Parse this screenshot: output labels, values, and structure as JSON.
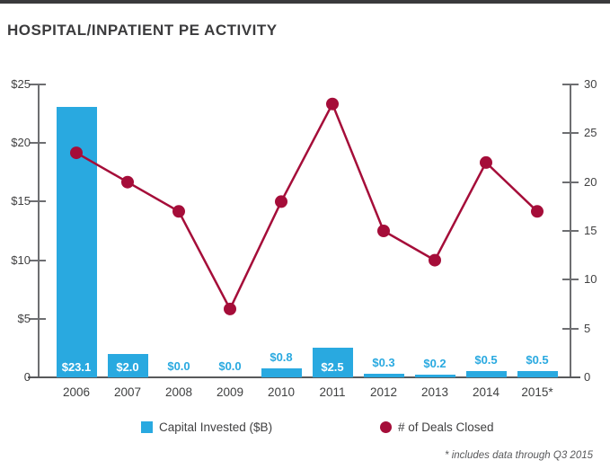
{
  "page": {
    "title": "HOSPITAL/INPATIENT PE ACTIVITY",
    "footnote": "* includes data through Q3 2015"
  },
  "colors": {
    "bar_blue": "#29a9e0",
    "line_crimson": "#a50d39",
    "axis_gray": "#6d6e71",
    "title_gray": "#3b3b3d",
    "label_gray": "#414142"
  },
  "legend": {
    "items": [
      {
        "swatch": "square-swatch",
        "color": "#29a9e0",
        "label": "Capital Invested ($B)"
      },
      {
        "swatch": "circle-swatch",
        "color": "#a50d39",
        "label": "# of Deals Closed"
      }
    ]
  },
  "chart_data": {
    "type": "bar",
    "subtype": "bar-line-combo",
    "title": "HOSPITAL/INPATIENT PE ACTIVITY",
    "categories": [
      "2006",
      "2007",
      "2008",
      "2009",
      "2010",
      "2011",
      "2012",
      "2013",
      "2014",
      "2015*"
    ],
    "series": [
      {
        "name": "Capital Invested ($B)",
        "type": "bar",
        "axis": "left",
        "values": [
          23.1,
          2.0,
          0.0,
          0.0,
          0.8,
          2.5,
          0.3,
          0.2,
          0.5,
          0.5
        ],
        "labels": [
          "$23.1",
          "$2.0",
          "$0.0",
          "$0.0",
          "$0.8",
          "$2.5",
          "$0.3",
          "$0.2",
          "$0.5",
          "$0.5"
        ]
      },
      {
        "name": "# of Deals Closed",
        "type": "line",
        "axis": "right",
        "values": [
          23,
          20,
          17,
          7,
          18,
          28,
          15,
          12,
          22,
          17
        ]
      }
    ],
    "left_axis": {
      "min": 0,
      "max": 25,
      "tick_step": 5,
      "tick_labels": [
        "0",
        "$5",
        "$10",
        "$15",
        "$20",
        "$25"
      ]
    },
    "right_axis": {
      "min": 0,
      "max": 30,
      "tick_step": 5,
      "tick_labels": [
        "0",
        "5",
        "10",
        "15",
        "20",
        "25",
        "30"
      ]
    },
    "grid": false,
    "legend_position": "bottom",
    "annotation": "* includes data through Q3 2015"
  }
}
